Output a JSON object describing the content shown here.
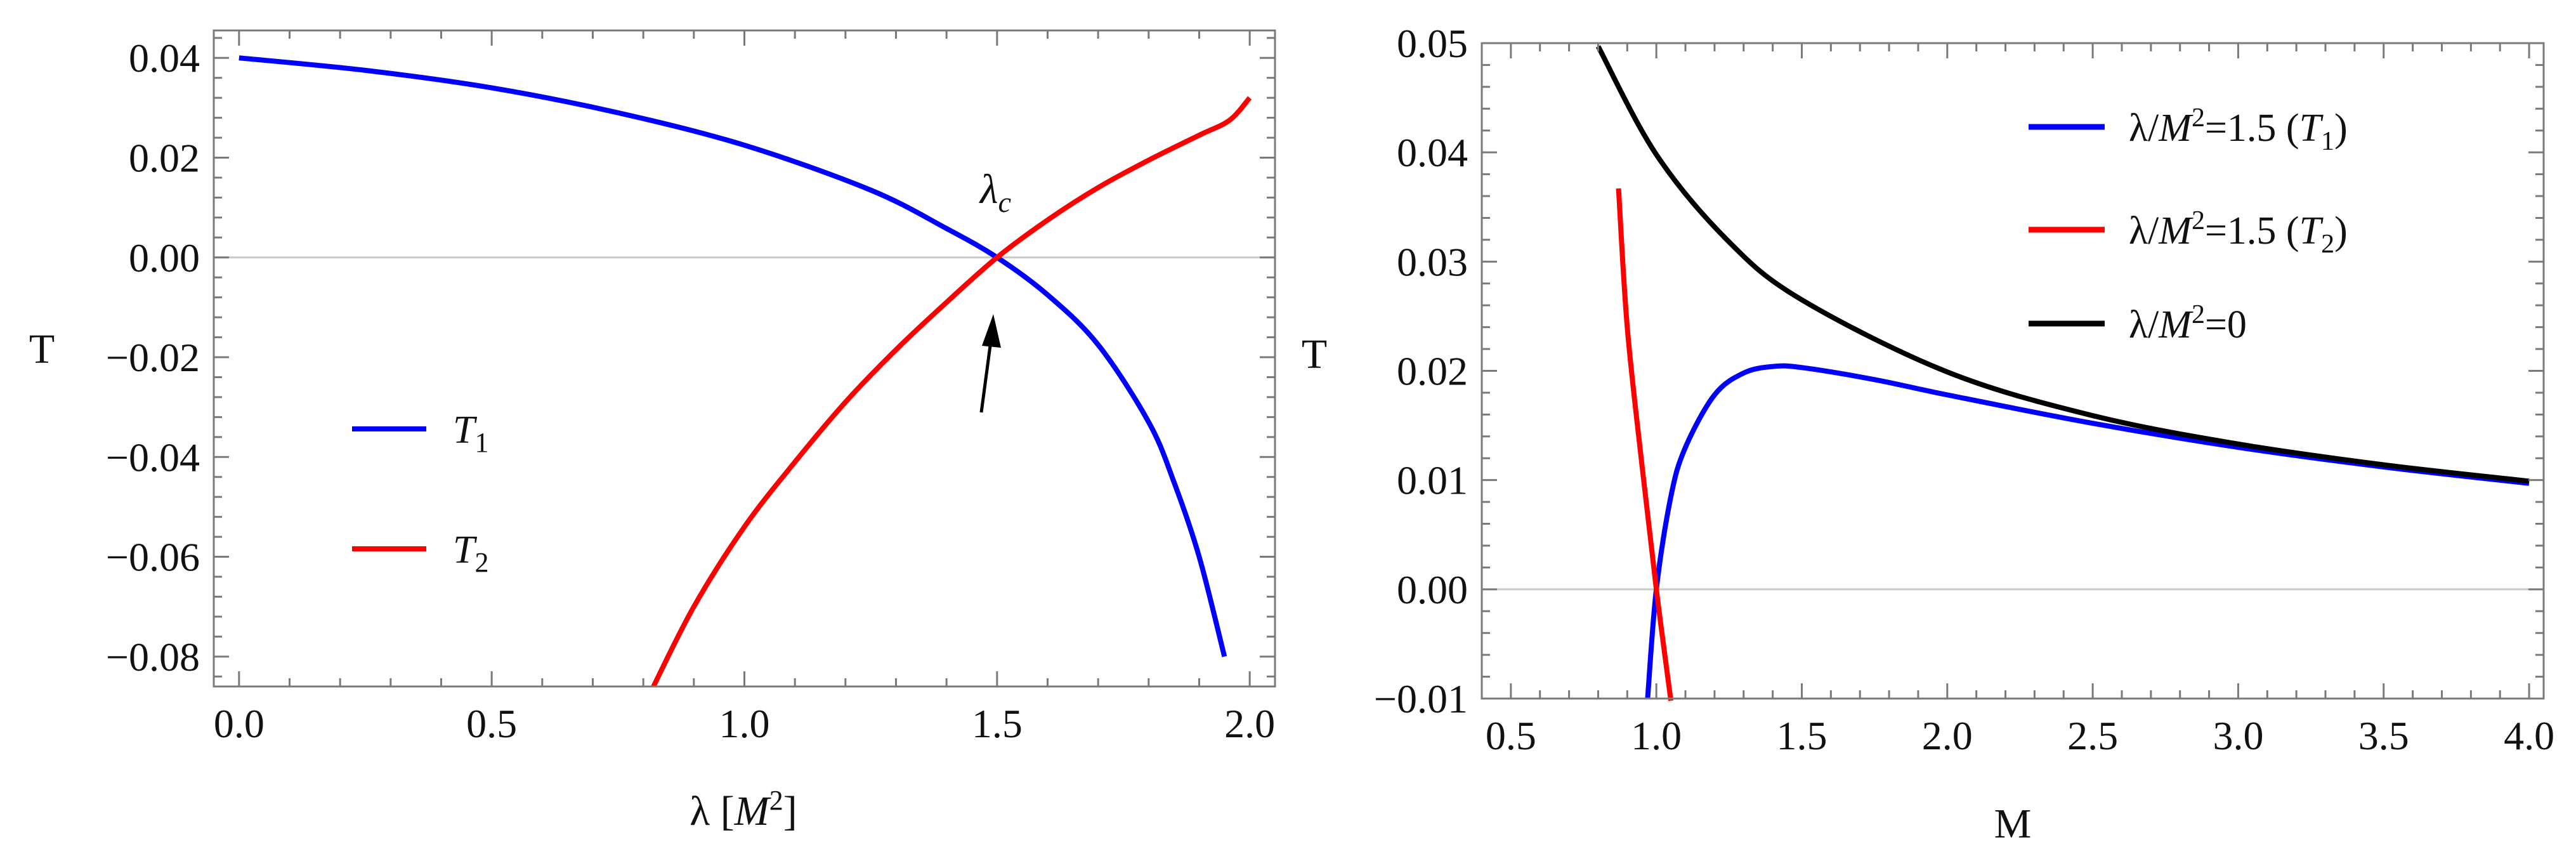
{
  "chart_data": [
    {
      "type": "line",
      "xlabel": "λ [M²]",
      "ylabel": "T",
      "xlim": [
        -0.05,
        2.05
      ],
      "ylim": [
        -0.086,
        0.0455
      ],
      "x_ticks": [
        "0.0",
        "0.5",
        "1.0",
        "1.5",
        "2.0"
      ],
      "y_ticks": [
        "0.04",
        "0.02",
        "0.00",
        "−0.02",
        "−0.04",
        "−0.06",
        "−0.08"
      ],
      "legend_position": "left-center",
      "annotation": {
        "text": "λc",
        "points_to": [
          1.5,
          0.0
        ]
      },
      "series": [
        {
          "name": "T1",
          "color": "#0000ff",
          "x": [
            0.0,
            0.25,
            0.5,
            0.75,
            1.0,
            1.25,
            1.4,
            1.5,
            1.6,
            1.7,
            1.8,
            1.85,
            1.9,
            1.95
          ],
          "y": [
            0.04,
            0.0375,
            0.034,
            0.029,
            0.0225,
            0.0135,
            0.0058,
            0.0,
            -0.0075,
            -0.0175,
            -0.033,
            -0.045,
            -0.06,
            -0.08
          ]
        },
        {
          "name": "T2",
          "color": "#ff0000",
          "x": [
            0.82,
            0.9,
            1.0,
            1.1,
            1.2,
            1.3,
            1.4,
            1.5,
            1.6,
            1.7,
            1.8,
            1.9,
            1.96,
            2.0
          ],
          "y": [
            -0.086,
            -0.07,
            -0.054,
            -0.041,
            -0.029,
            -0.0185,
            -0.009,
            0.0,
            0.0075,
            0.014,
            0.0195,
            0.0245,
            0.0275,
            0.032
          ]
        }
      ]
    },
    {
      "type": "line",
      "xlabel": "M",
      "ylabel": "T",
      "xlim": [
        0.4,
        4.05
      ],
      "ylim": [
        -0.01,
        0.05
      ],
      "x_ticks": [
        "0.5",
        "1.0",
        "1.5",
        "2.0",
        "2.5",
        "3.0",
        "3.5",
        "4.0"
      ],
      "y_ticks": [
        "0.05",
        "0.04",
        "0.03",
        "0.02",
        "0.01",
        "0.00",
        "−0.01"
      ],
      "legend_position": "top-right",
      "series": [
        {
          "name": "λ/M²=1.5 (T1)",
          "color": "#0000ff",
          "x": [
            0.97,
            1.0,
            1.05,
            1.1,
            1.2,
            1.3,
            1.4,
            1.5,
            1.75,
            2.0,
            2.5,
            3.0,
            3.5,
            4.0
          ],
          "y": [
            -0.01,
            0.0,
            0.0085,
            0.013,
            0.0178,
            0.0198,
            0.0204,
            0.0203,
            0.0192,
            0.0178,
            0.0152,
            0.013,
            0.0112,
            0.0097
          ]
        },
        {
          "name": "λ/M²=1.5 (T2)",
          "color": "#ff0000",
          "x": [
            0.87,
            0.9,
            0.95,
            1.0,
            1.05
          ],
          "y": [
            0.0367,
            0.024,
            0.0115,
            0.0,
            -0.0102
          ]
        },
        {
          "name": "λ/M²=0",
          "color": "#000000",
          "x": [
            0.8,
            1.0,
            1.25,
            1.5,
            2.0,
            2.5,
            3.0,
            3.5,
            4.0
          ],
          "y": [
            0.0497,
            0.0398,
            0.0318,
            0.0265,
            0.0199,
            0.0159,
            0.0133,
            0.0114,
            0.0099
          ]
        }
      ]
    }
  ]
}
